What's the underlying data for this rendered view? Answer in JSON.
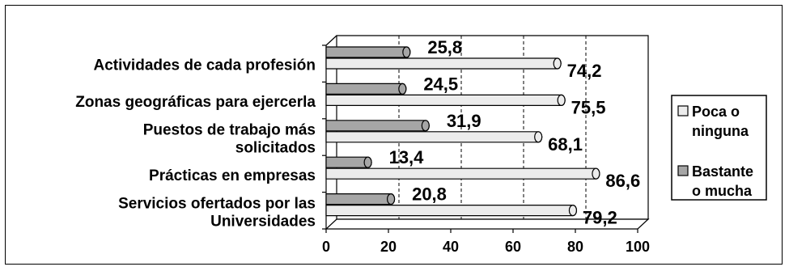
{
  "chart_data": {
    "type": "bar",
    "orientation": "horizontal",
    "three_d": true,
    "categories": [
      [
        "Actividades de cada profesión"
      ],
      [
        "Zonas geográficas para ejercerla"
      ],
      [
        "Puestos de trabajo más",
        "solicitados"
      ],
      [
        "Prácticas en empresas"
      ],
      [
        "Servicios ofertados por las",
        "Universidades"
      ]
    ],
    "series": [
      {
        "name": "Bastante o mucha",
        "legend_lines": [
          "Bastante",
          "o mucha"
        ],
        "color": "#a6a6a6",
        "values": [
          25.8,
          24.5,
          31.9,
          13.4,
          20.8
        ],
        "labels": [
          "25,8",
          "24,5",
          "31,9",
          "13,4",
          "20,8"
        ]
      },
      {
        "name": "Poca o ninguna",
        "legend_lines": [
          "Poca o",
          "ninguna"
        ],
        "color": "#ececec",
        "values": [
          74.2,
          75.5,
          68.1,
          86.6,
          79.2
        ],
        "labels": [
          "74,2",
          "75,5",
          "68,1",
          "86,6",
          "79,2"
        ]
      }
    ],
    "legend_order": [
      1,
      0
    ],
    "x_ticks": [
      "0",
      "20",
      "40",
      "60",
      "80",
      "100"
    ],
    "xlim": [
      0,
      100
    ],
    "grid": "vertical dashed",
    "legend_position": "right"
  }
}
